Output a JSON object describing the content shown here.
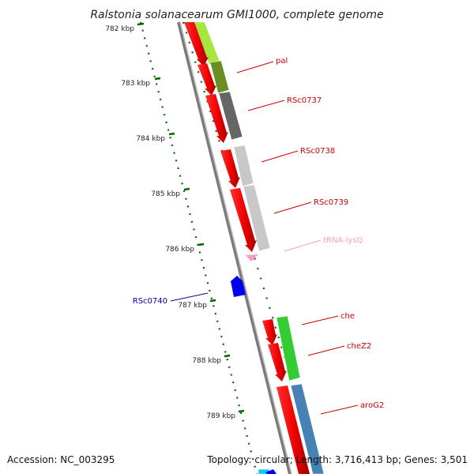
{
  "title": "Ralstonia solanacearum GMI1000, complete genome",
  "footer": {
    "accession": "Accession: NC_003295",
    "summary": "Topology: circular; Length: 3,716,413 bp; Genes: 3,501"
  },
  "ticks": [
    "782 kbp",
    "783 kbp",
    "784 kbp",
    "785 kbp",
    "786 kbp",
    "787 kbp",
    "788 kbp",
    "789 kbp"
  ],
  "labels": [
    {
      "text": "pal",
      "color": "#cc0000"
    },
    {
      "text": "RSc0737",
      "color": "#cc0000"
    },
    {
      "text": "RSc0738",
      "color": "#cc0000"
    },
    {
      "text": "RSc0739",
      "color": "#cc0000"
    },
    {
      "text": "tRNA-lysQ",
      "color": "#ff99cc"
    },
    {
      "text": "RSc0740",
      "color": "#000099"
    },
    {
      "text": "che",
      "color": "#cc0000"
    },
    {
      "text": "cheZ2",
      "color": "#cc0000"
    },
    {
      "text": "aroG2",
      "color": "#cc0000"
    }
  ],
  "colors": {
    "cds": "#ff0000",
    "trna": "#ff99cc",
    "reverse_cds": "#0000ff",
    "backbone": "#888888",
    "tick": "#006600",
    "cog_lime": "#a4e83c",
    "cog_olive": "#6b8e23",
    "cog_darkgray": "#666666",
    "cog_lightgray": "#c8c8c8",
    "cog_green": "#33cc33",
    "cog_steelblue": "#4682b4",
    "cog_cyan": "#00ccff"
  }
}
